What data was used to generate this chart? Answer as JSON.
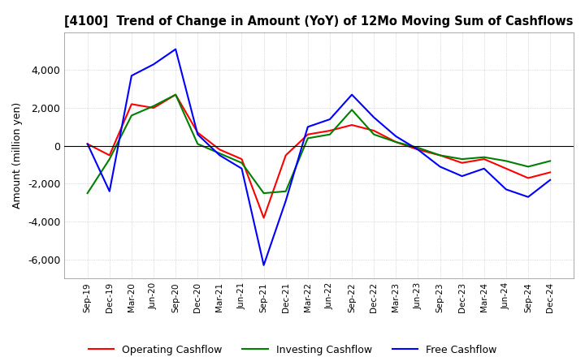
{
  "title": "[4100]  Trend of Change in Amount (YoY) of 12Mo Moving Sum of Cashflows",
  "ylabel": "Amount (million yen)",
  "background_color": "#ffffff",
  "grid_color": "#bbbbbb",
  "x_labels": [
    "Sep-19",
    "Dec-19",
    "Mar-20",
    "Jun-20",
    "Sep-20",
    "Dec-20",
    "Mar-21",
    "Jun-21",
    "Sep-21",
    "Dec-21",
    "Mar-22",
    "Jun-22",
    "Sep-22",
    "Dec-22",
    "Mar-23",
    "Jun-23",
    "Sep-23",
    "Dec-23",
    "Mar-24",
    "Jun-24",
    "Sep-24",
    "Dec-24"
  ],
  "operating": [
    100,
    -500,
    2200,
    2000,
    2700,
    700,
    -200,
    -700,
    -3800,
    -500,
    600,
    800,
    1100,
    800,
    200,
    -200,
    -500,
    -900,
    -700,
    -1200,
    -1700,
    -1400
  ],
  "investing": [
    -2500,
    -700,
    1600,
    2100,
    2700,
    100,
    -400,
    -900,
    -2500,
    -2400,
    400,
    600,
    1900,
    600,
    200,
    -100,
    -500,
    -700,
    -600,
    -800,
    -1100,
    -800
  ],
  "free": [
    100,
    -2400,
    3700,
    4300,
    5100,
    600,
    -500,
    -1200,
    -6300,
    -2900,
    1000,
    1400,
    2700,
    1500,
    500,
    -200,
    -1100,
    -1600,
    -1200,
    -2300,
    -2700,
    -1800
  ],
  "ylim": [
    -7000,
    6000
  ],
  "yticks": [
    -6000,
    -4000,
    -2000,
    0,
    2000,
    4000
  ],
  "line_colors": {
    "operating": "#ff0000",
    "investing": "#008000",
    "free": "#0000ff"
  },
  "legend_labels": [
    "Operating Cashflow",
    "Investing Cashflow",
    "Free Cashflow"
  ]
}
